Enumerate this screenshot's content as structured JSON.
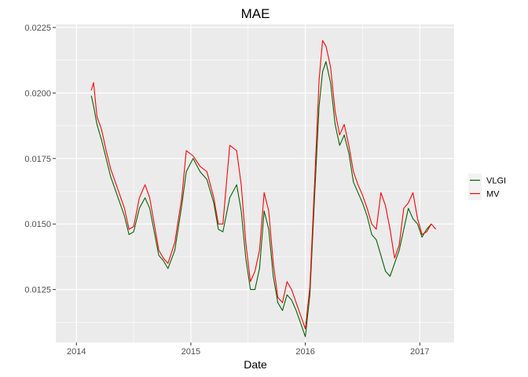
{
  "chart_data": {
    "type": "line",
    "title": "MAE",
    "xlabel": "Date",
    "ylabel": "",
    "xlim": [
      2013.82,
      2017.3
    ],
    "ylim": [
      0.01048,
      0.02262
    ],
    "x_ticks": [
      2014,
      2015,
      2016,
      2017
    ],
    "x_tick_labels": [
      "2014",
      "2015",
      "2016",
      "2017"
    ],
    "y_ticks": [
      0.0125,
      0.015,
      0.0175,
      0.02,
      0.0225
    ],
    "y_tick_labels": [
      "0.0125",
      "0.0150",
      "0.0175",
      "0.0200",
      "0.0225"
    ],
    "grid": true,
    "legend_position": "right",
    "series": [
      {
        "name": "VLGI",
        "color": "#006400",
        "x": [
          2014.13,
          2014.15,
          2014.18,
          2014.22,
          2014.26,
          2014.3,
          2014.34,
          2014.38,
          2014.42,
          2014.46,
          2014.5,
          2014.55,
          2014.6,
          2014.64,
          2014.68,
          2014.72,
          2014.76,
          2014.8,
          2014.86,
          2014.92,
          2014.96,
          2015.02,
          2015.08,
          2015.14,
          2015.2,
          2015.24,
          2015.28,
          2015.34,
          2015.4,
          2015.44,
          2015.48,
          2015.52,
          2015.56,
          2015.6,
          2015.64,
          2015.68,
          2015.72,
          2015.76,
          2015.8,
          2015.84,
          2015.88,
          2015.92,
          2015.96,
          2016.0,
          2016.04,
          2016.08,
          2016.12,
          2016.15,
          2016.18,
          2016.22,
          2016.26,
          2016.3,
          2016.34,
          2016.38,
          2016.42,
          2016.46,
          2016.5,
          2016.54,
          2016.58,
          2016.62,
          2016.66,
          2016.7,
          2016.74,
          2016.78,
          2016.82,
          2016.86,
          2016.9,
          2016.94,
          2016.98,
          2017.02,
          2017.06,
          2017.1
        ],
        "values": [
          0.0199,
          0.0195,
          0.0188,
          0.0182,
          0.0175,
          0.0168,
          0.0163,
          0.0158,
          0.0153,
          0.0146,
          0.0147,
          0.0156,
          0.016,
          0.0156,
          0.0147,
          0.0138,
          0.0136,
          0.0133,
          0.014,
          0.0157,
          0.017,
          0.0175,
          0.017,
          0.0167,
          0.0158,
          0.0148,
          0.0147,
          0.016,
          0.0165,
          0.0155,
          0.0137,
          0.0125,
          0.0125,
          0.0133,
          0.0155,
          0.0148,
          0.013,
          0.012,
          0.0117,
          0.0123,
          0.0121,
          0.0117,
          0.0112,
          0.0107,
          0.0123,
          0.016,
          0.0195,
          0.0208,
          0.0212,
          0.0204,
          0.0188,
          0.018,
          0.0184,
          0.0177,
          0.0166,
          0.0162,
          0.0158,
          0.0153,
          0.0146,
          0.0144,
          0.0138,
          0.0132,
          0.013,
          0.0135,
          0.014,
          0.0148,
          0.0156,
          0.0152,
          0.015,
          0.0145,
          0.0148,
          0.015
        ]
      },
      {
        "name": "MV",
        "color": "#FF0000",
        "x": [
          2014.13,
          2014.15,
          2014.18,
          2014.22,
          2014.26,
          2014.3,
          2014.34,
          2014.38,
          2014.42,
          2014.46,
          2014.5,
          2014.55,
          2014.6,
          2014.64,
          2014.68,
          2014.72,
          2014.76,
          2014.8,
          2014.86,
          2014.92,
          2014.96,
          2015.02,
          2015.08,
          2015.14,
          2015.2,
          2015.24,
          2015.28,
          2015.34,
          2015.4,
          2015.44,
          2015.48,
          2015.52,
          2015.56,
          2015.6,
          2015.64,
          2015.68,
          2015.72,
          2015.76,
          2015.8,
          2015.84,
          2015.88,
          2015.92,
          2015.96,
          2016.0,
          2016.04,
          2016.08,
          2016.12,
          2016.15,
          2016.18,
          2016.22,
          2016.26,
          2016.3,
          2016.34,
          2016.38,
          2016.42,
          2016.46,
          2016.5,
          2016.54,
          2016.58,
          2016.62,
          2016.66,
          2016.7,
          2016.74,
          2016.78,
          2016.82,
          2016.86,
          2016.9,
          2016.94,
          2016.98,
          2017.02,
          2017.06,
          2017.1,
          2017.14
        ],
        "values": [
          0.0201,
          0.0204,
          0.0191,
          0.0186,
          0.0178,
          0.0171,
          0.0166,
          0.0161,
          0.0156,
          0.0148,
          0.0149,
          0.016,
          0.0165,
          0.016,
          0.015,
          0.014,
          0.0137,
          0.0135,
          0.0143,
          0.016,
          0.0178,
          0.0176,
          0.0172,
          0.017,
          0.016,
          0.015,
          0.015,
          0.018,
          0.0178,
          0.0165,
          0.0143,
          0.0128,
          0.0132,
          0.014,
          0.0162,
          0.0155,
          0.0135,
          0.0122,
          0.012,
          0.0128,
          0.0125,
          0.012,
          0.0115,
          0.011,
          0.0126,
          0.0165,
          0.0205,
          0.022,
          0.0218,
          0.021,
          0.0193,
          0.0184,
          0.0188,
          0.018,
          0.017,
          0.0165,
          0.0161,
          0.0156,
          0.015,
          0.0148,
          0.0162,
          0.0157,
          0.0148,
          0.0137,
          0.0142,
          0.0156,
          0.0158,
          0.0162,
          0.0152,
          0.0146,
          0.0147,
          0.015,
          0.0148
        ]
      }
    ]
  }
}
